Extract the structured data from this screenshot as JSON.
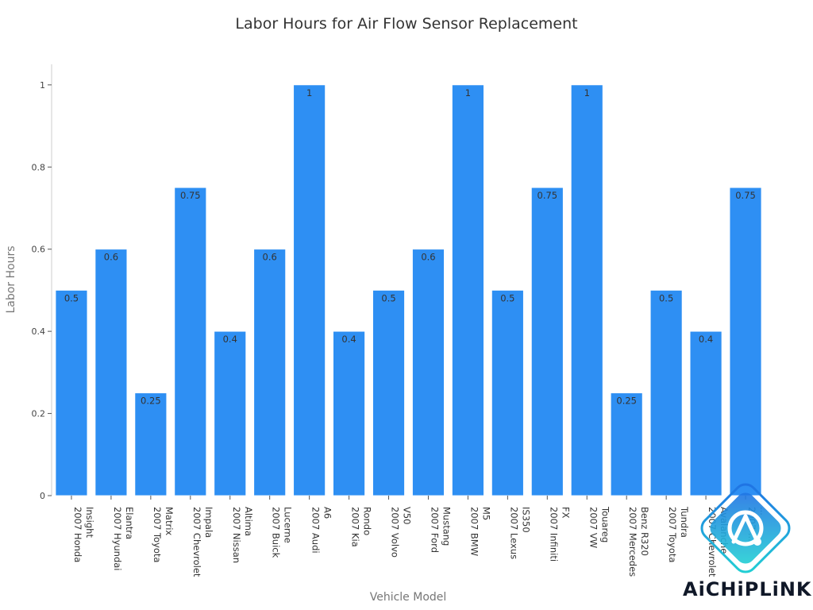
{
  "chart_data": {
    "type": "bar",
    "title": "Labor Hours for Air Flow Sensor Replacement",
    "xlabel": "Vehicle Model",
    "ylabel": "Labor Hours",
    "ylim": [
      0,
      1.05
    ],
    "yticks": [
      0,
      0.2,
      0.4,
      0.6,
      0.8,
      1
    ],
    "ytick_labels": [
      "0",
      "0.2",
      "0.4",
      "0.6",
      "0.8",
      "1"
    ],
    "categories": [
      [
        "2007 Honda",
        "Insight"
      ],
      [
        "2007 Hyundai",
        "Elantra"
      ],
      [
        "2007 Toyota",
        "Matrix"
      ],
      [
        "2007 Chevrolet",
        "Impala"
      ],
      [
        "2007 Nissan",
        "Altima"
      ],
      [
        "2007 Buick",
        "Lucerne"
      ],
      [
        "2007 Audi",
        "A6"
      ],
      [
        "2007 Kia",
        "Rondo"
      ],
      [
        "2007 Volvo",
        "V50"
      ],
      [
        "2007 Ford",
        "Mustang"
      ],
      [
        "2007 BMW",
        "M5"
      ],
      [
        "2007 Lexus",
        "IS350"
      ],
      [
        "2007 Infiniti",
        "FX"
      ],
      [
        "2007 VW",
        "Touareg"
      ],
      [
        "2007 Mercedes",
        "Benz R320"
      ],
      [
        "2007 Toyota",
        "Tundra"
      ],
      [
        "2007 Chevrolet",
        "Avalanche"
      ],
      [
        "2007 ...",
        "..."
      ]
    ],
    "values": [
      0.5,
      0.6,
      0.25,
      0.75,
      0.4,
      0.6,
      1,
      0.4,
      0.5,
      0.6,
      1,
      0.5,
      0.75,
      1,
      0.25,
      0.5,
      0.4,
      0.75
    ],
    "value_labels": [
      "0.5",
      "0.6",
      "0.25",
      "0.75",
      "0.4",
      "0.6",
      "1",
      "0.4",
      "0.5",
      "0.6",
      "1",
      "0.5",
      "0.75",
      "1",
      "0.25",
      "0.5",
      "0.4",
      "0.75"
    ],
    "bar_color": "#2e8ff3",
    "grid": false,
    "legend": "none"
  },
  "watermark": {
    "text": "AiCHiPLiNK",
    "colors": {
      "gradient_start": "#1f6fe5",
      "gradient_end": "#22d3d3",
      "text": "#101828"
    }
  }
}
